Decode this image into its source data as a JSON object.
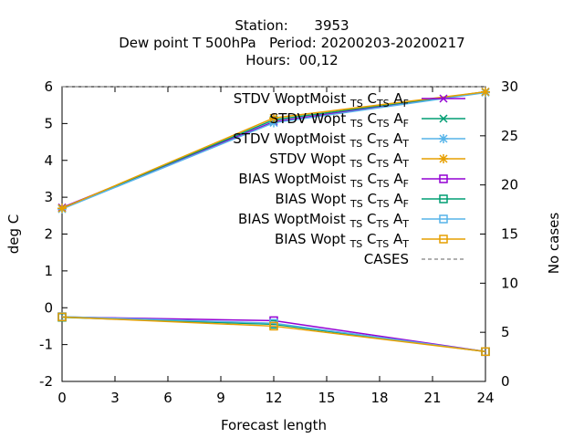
{
  "title_lines": [
    "Station:      3953",
    "Dew point T 500hPa   Period: 20200203-20200217",
    "Hours:  00,12"
  ],
  "chart_data": {
    "type": "line",
    "xlabel": "Forecast length",
    "ylabel": "deg C",
    "y2label": "No cases",
    "xlim": [
      0,
      24
    ],
    "ylim": [
      -2,
      6
    ],
    "y2lim": [
      0,
      30
    ],
    "x_ticks": [
      "0",
      "3",
      "6",
      "9",
      "12",
      "15",
      "18",
      "21",
      "24"
    ],
    "y_ticks": [
      "-2",
      "-1",
      "0",
      "1",
      "2",
      "3",
      "4",
      "5",
      "6"
    ],
    "y2_ticks": [
      "0",
      "5",
      "10",
      "15",
      "20",
      "25",
      "30"
    ],
    "legend_position": "top-right",
    "x": [
      0,
      12,
      24
    ],
    "series": [
      {
        "name": "STDV WoptMoist_TS C_TS A_F",
        "base": "STDV WoptMoist",
        "sub1": "TS",
        "sub2": "TS",
        "last": "F",
        "color": "#9400d3",
        "marker": "x",
        "values": [
          2.72,
          5.05,
          5.86
        ]
      },
      {
        "name": "STDV Wopt_TS C_TS A_F",
        "base": "STDV Wopt",
        "sub1": "TS",
        "sub2": "TS",
        "last": "F",
        "color": "#009e73",
        "marker": "x",
        "values": [
          2.7,
          5.1,
          5.86
        ]
      },
      {
        "name": "STDV WoptMoist_TS C_TS A_T",
        "base": "STDV WoptMoist",
        "sub1": "TS",
        "sub2": "TS",
        "last": "T",
        "color": "#56b4e9",
        "marker": "star",
        "values": [
          2.68,
          5.02,
          5.84
        ]
      },
      {
        "name": "STDV Wopt_TS C_TS A_T",
        "base": "STDV Wopt",
        "sub1": "TS",
        "sub2": "TS",
        "last": "T",
        "color": "#e69f00",
        "marker": "star",
        "values": [
          2.7,
          5.15,
          5.86
        ]
      },
      {
        "name": "BIAS WoptMoist_TS C_TS A_F",
        "base": "BIAS WoptMoist",
        "sub1": "TS",
        "sub2": "TS",
        "last": "F",
        "color": "#9400d3",
        "marker": "square",
        "values": [
          -0.25,
          -0.35,
          -1.19
        ]
      },
      {
        "name": "BIAS Wopt_TS C_TS A_F",
        "base": "BIAS Wopt",
        "sub1": "TS",
        "sub2": "TS",
        "last": "F",
        "color": "#009e73",
        "marker": "square",
        "values": [
          -0.26,
          -0.45,
          -1.19
        ]
      },
      {
        "name": "BIAS WoptMoist_TS C_TS A_T",
        "base": "BIAS WoptMoist",
        "sub1": "TS",
        "sub2": "TS",
        "last": "T",
        "color": "#56b4e9",
        "marker": "square",
        "values": [
          -0.24,
          -0.42,
          -1.19
        ]
      },
      {
        "name": "BIAS Wopt_TS C_TS A_T",
        "base": "BIAS Wopt",
        "sub1": "TS",
        "sub2": "TS",
        "last": "T",
        "color": "#e69f00",
        "marker": "square",
        "values": [
          -0.25,
          -0.5,
          -1.19
        ]
      }
    ],
    "cases": {
      "name": "CASES",
      "color": "#808080",
      "values": [
        30,
        30,
        30
      ]
    }
  }
}
